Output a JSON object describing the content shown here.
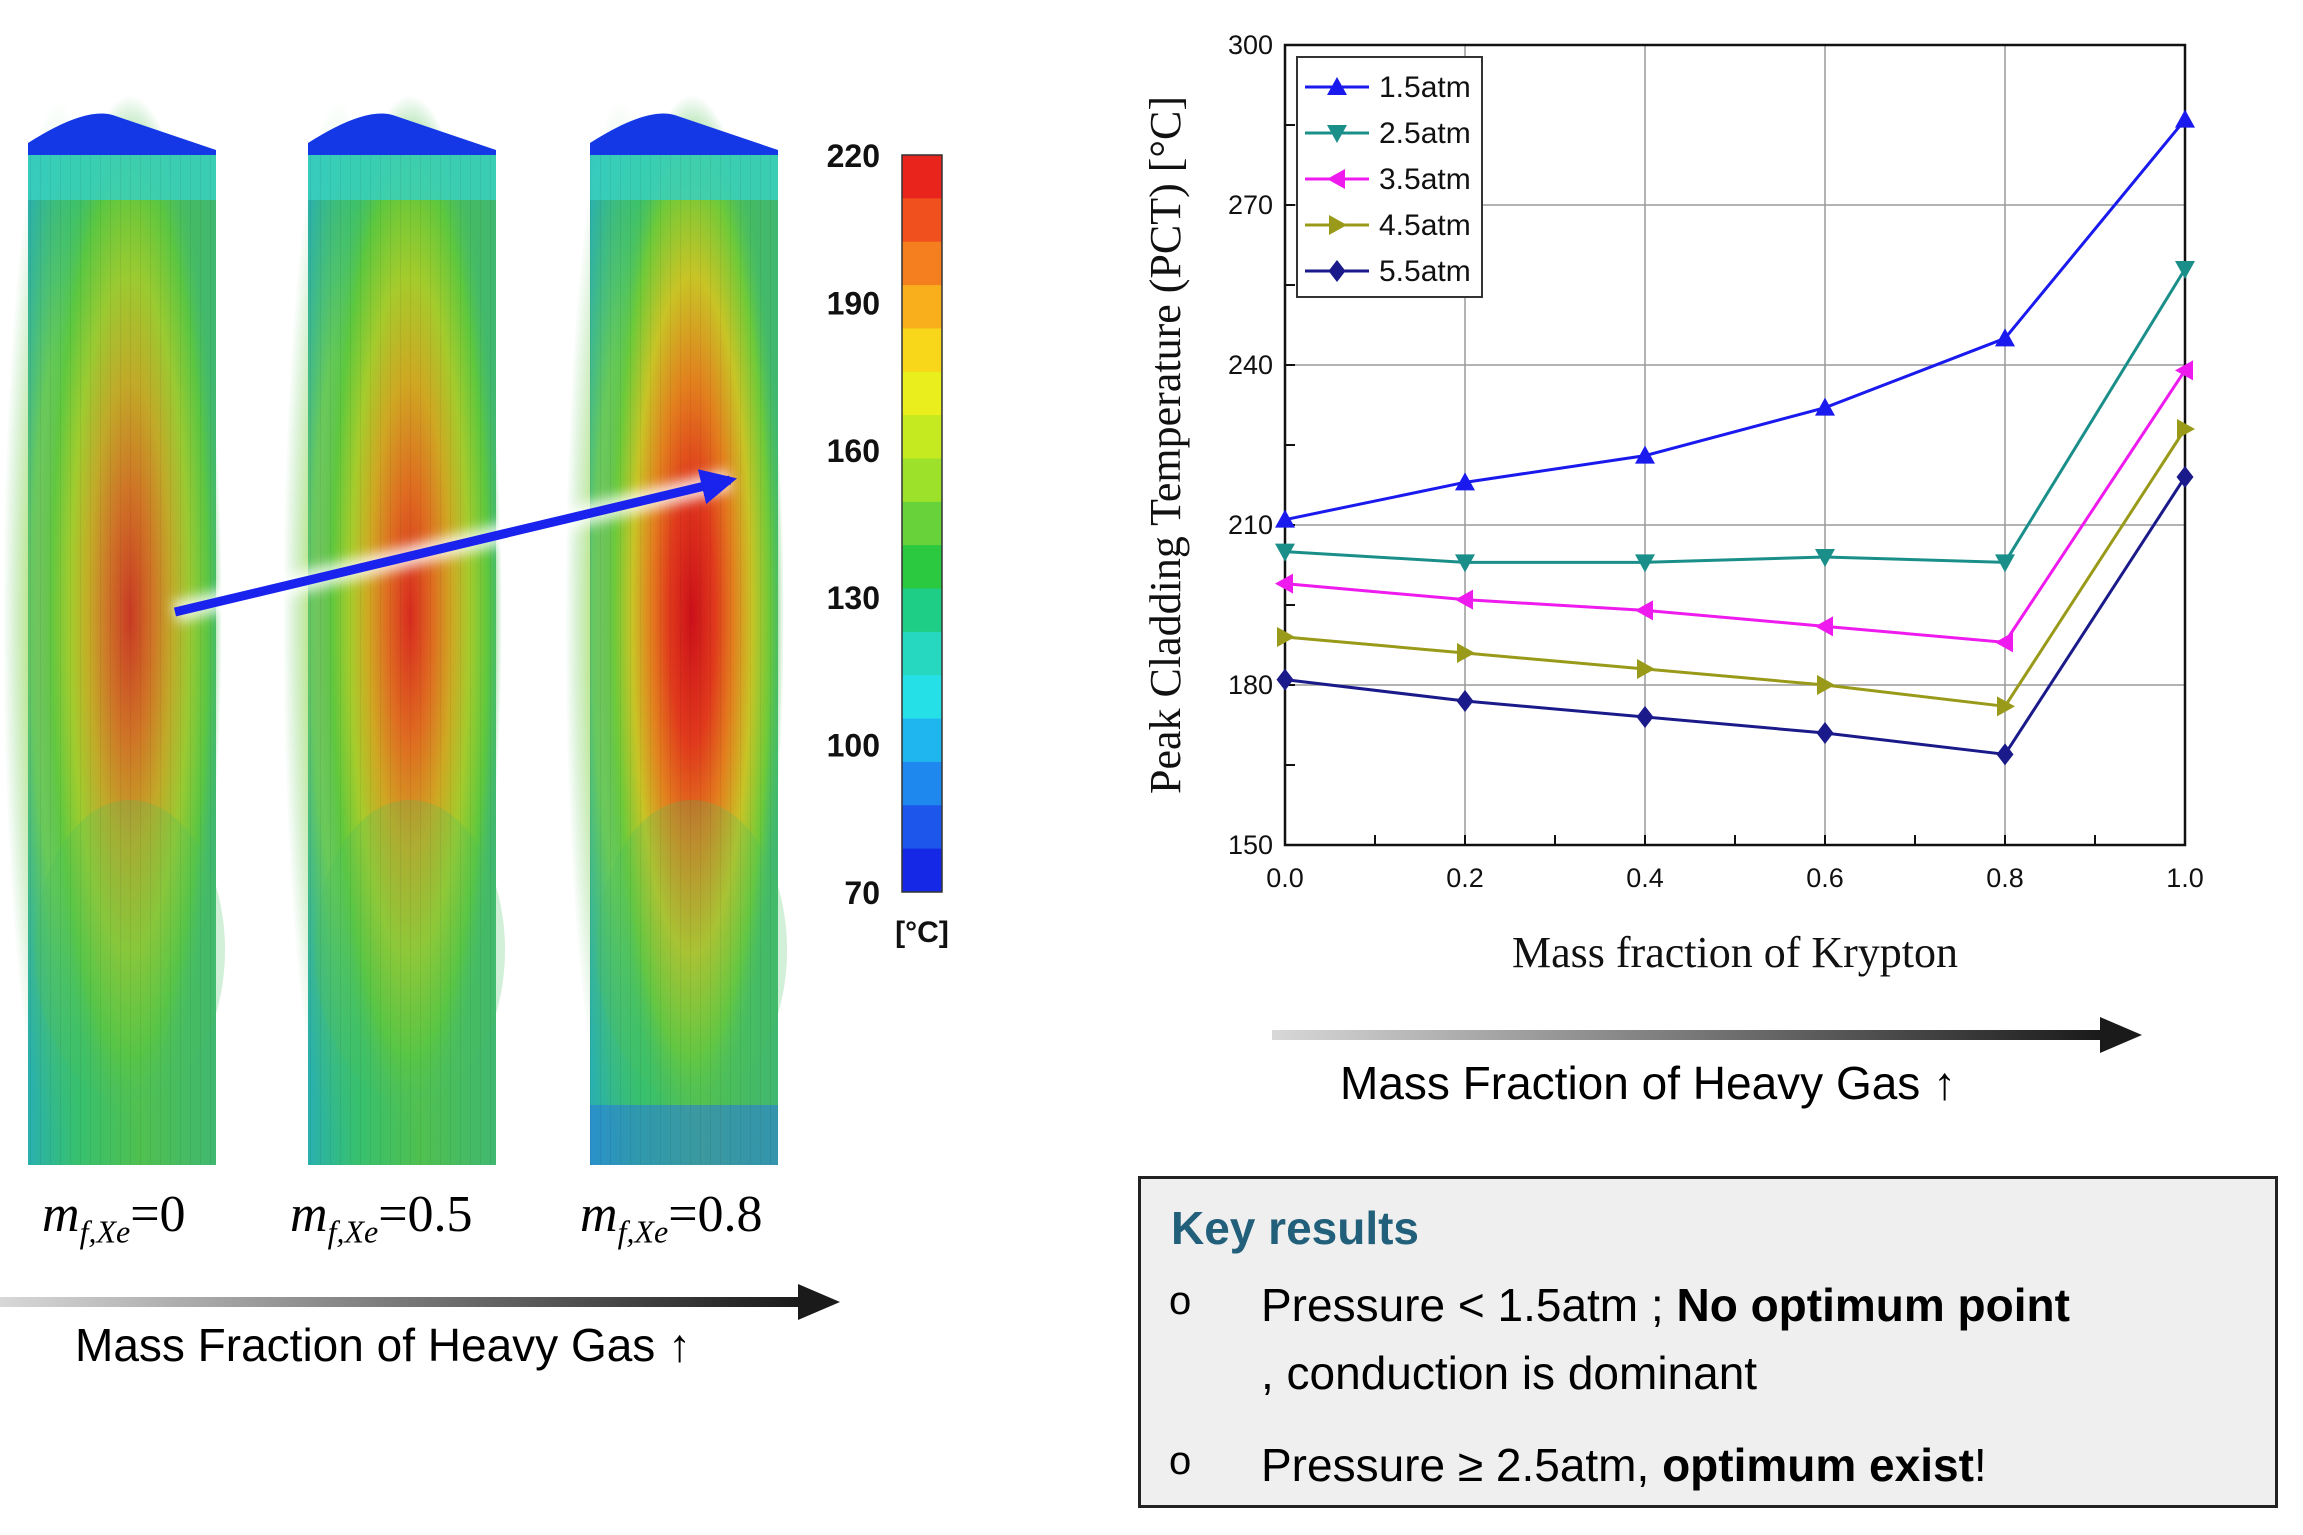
{
  "contour": {
    "colorbar": {
      "ticks": [
        "220",
        "190",
        "160",
        "130",
        "100",
        "70"
      ],
      "unit": "[°C]",
      "colors": [
        "#e8241c",
        "#f0501e",
        "#f57e1f",
        "#f9ae1c",
        "#f8d61a",
        "#e9ee1c",
        "#c5ea20",
        "#9ee12b",
        "#67d23a",
        "#2ac940",
        "#1fce86",
        "#26d8c0",
        "#26e0e8",
        "#1fb6f0",
        "#1e88ee",
        "#1d56ea",
        "#1428e6"
      ]
    },
    "cases": [
      {
        "sym": "m",
        "sub": "f,Xe",
        "value": "=0"
      },
      {
        "sym": "m",
        "sub": "f,Xe",
        "value": "=0.5"
      },
      {
        "sym": "m",
        "sub": "f,Xe",
        "value": "=0.8"
      }
    ],
    "axis_label": "Mass Fraction of Heavy Gas ↑"
  },
  "chart_data": {
    "type": "line",
    "title": "",
    "xlabel": "Mass fraction of Krypton",
    "ylabel": "Peak Cladding Temperature (PCT) [°C]",
    "xlim": [
      0.0,
      1.0
    ],
    "ylim": [
      150,
      300
    ],
    "xticks": [
      "0.0",
      "0.2",
      "0.4",
      "0.6",
      "0.8",
      "1.0"
    ],
    "yticks": [
      "150",
      "180",
      "210",
      "240",
      "270",
      "300"
    ],
    "x": [
      0.0,
      0.2,
      0.4,
      0.6,
      0.8,
      1.0
    ],
    "grid": true,
    "legend_position": "top-left",
    "series": [
      {
        "name": "1.5atm",
        "color": "#1a1aee",
        "marker": "triangle-up",
        "values": [
          211,
          218,
          223,
          232,
          245,
          286
        ]
      },
      {
        "name": "2.5atm",
        "color": "#1a8f8a",
        "marker": "triangle-down",
        "values": [
          205,
          203,
          203,
          204,
          203,
          258
        ]
      },
      {
        "name": "3.5atm",
        "color": "#ee1aee",
        "marker": "triangle-left",
        "values": [
          199,
          196,
          194,
          191,
          188,
          239
        ]
      },
      {
        "name": "4.5atm",
        "color": "#9a9a1a",
        "marker": "triangle-right",
        "values": [
          189,
          186,
          183,
          180,
          176,
          228
        ]
      },
      {
        "name": "5.5atm",
        "color": "#1a1a8a",
        "marker": "diamond",
        "values": [
          181,
          177,
          174,
          171,
          167,
          219
        ]
      }
    ]
  },
  "right_axis_label": "Mass Fraction of Heavy Gas ↑",
  "key_results": {
    "title": "Key results",
    "bullet": "o",
    "items": [
      {
        "pre": "Pressure < 1.5atm ; ",
        "bold": "No optimum point",
        "post": ", conduction is dominant"
      },
      {
        "pre": "Pressure ≥ 2.5atm, ",
        "bold": "optimum exist",
        "post": "!"
      }
    ]
  }
}
